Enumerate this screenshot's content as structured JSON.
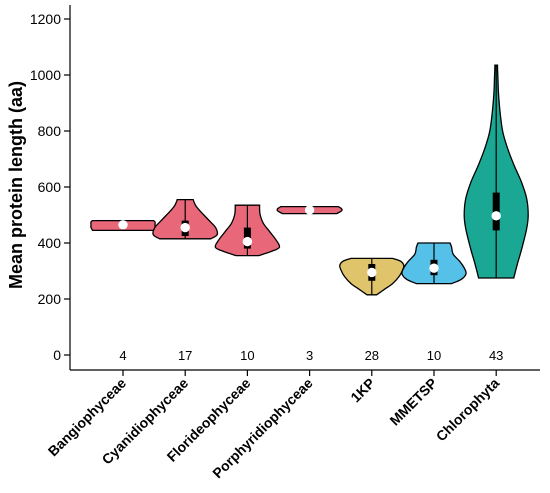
{
  "chart_data": {
    "type": "violin",
    "ylabel": "Mean protein length (aa)",
    "ylim": [
      0,
      1250
    ],
    "yticks": [
      0,
      200,
      400,
      600,
      800,
      1000,
      1200
    ],
    "ytick_labels": [
      "0",
      "200",
      "400",
      "600",
      "800",
      "1000",
      "1200"
    ],
    "grid": false,
    "categories": [
      "Bangiophyceae",
      "Cyanidiophyceae",
      "Florideophyceae",
      "Porphyridiophyceae",
      "1KP",
      "MMETSP",
      "Chlorophyta"
    ],
    "counts": [
      "4",
      "17",
      "10",
      "3",
      "28",
      "10",
      "43"
    ],
    "colors": [
      "#e8687a",
      "#e8687a",
      "#e8687a",
      "#e8687a",
      "#e0c46c",
      "#55c1e8",
      "#1aa894"
    ],
    "series": [
      {
        "median": 465,
        "q1": 458,
        "q3": 472,
        "min": 445,
        "max": 480,
        "profile": [
          [
            445,
            0.95
          ],
          [
            455,
            1.0
          ],
          [
            465,
            1.0
          ],
          [
            475,
            1.0
          ],
          [
            480,
            0.95
          ]
        ]
      },
      {
        "median": 455,
        "q1": 425,
        "q3": 480,
        "min": 415,
        "max": 555,
        "profile": [
          [
            415,
            0.8
          ],
          [
            430,
            1.0
          ],
          [
            455,
            0.95
          ],
          [
            480,
            0.75
          ],
          [
            510,
            0.5
          ],
          [
            530,
            0.35
          ],
          [
            545,
            0.28
          ],
          [
            555,
            0.25
          ]
        ]
      },
      {
        "median": 405,
        "q1": 380,
        "q3": 455,
        "min": 355,
        "max": 535,
        "profile": [
          [
            355,
            0.35
          ],
          [
            370,
            0.75
          ],
          [
            385,
            1.0
          ],
          [
            410,
            0.9
          ],
          [
            440,
            0.7
          ],
          [
            470,
            0.5
          ],
          [
            500,
            0.4
          ],
          [
            520,
            0.38
          ],
          [
            535,
            0.38
          ]
        ]
      },
      {
        "median": 518,
        "q1": 512,
        "q3": 522,
        "min": 505,
        "max": 530,
        "profile": [
          [
            505,
            0.85
          ],
          [
            515,
            1.0
          ],
          [
            522,
            1.0
          ],
          [
            530,
            0.9
          ]
        ]
      },
      {
        "median": 295,
        "q1": 265,
        "q3": 325,
        "min": 215,
        "max": 345,
        "profile": [
          [
            215,
            0.15
          ],
          [
            235,
            0.4
          ],
          [
            255,
            0.65
          ],
          [
            280,
            0.85
          ],
          [
            300,
            0.95
          ],
          [
            320,
            1.0
          ],
          [
            335,
            0.9
          ],
          [
            345,
            0.65
          ]
        ]
      },
      {
        "median": 310,
        "q1": 285,
        "q3": 340,
        "min": 255,
        "max": 400,
        "profile": [
          [
            255,
            0.55
          ],
          [
            270,
            0.85
          ],
          [
            290,
            1.0
          ],
          [
            310,
            0.95
          ],
          [
            335,
            0.8
          ],
          [
            360,
            0.6
          ],
          [
            385,
            0.55
          ],
          [
            400,
            0.5
          ]
        ]
      },
      {
        "median": 497,
        "q1": 445,
        "q3": 580,
        "min": 275,
        "max": 1035,
        "profile": [
          [
            275,
            0.55
          ],
          [
            320,
            0.65
          ],
          [
            380,
            0.8
          ],
          [
            450,
            0.95
          ],
          [
            500,
            1.0
          ],
          [
            560,
            0.95
          ],
          [
            620,
            0.78
          ],
          [
            680,
            0.55
          ],
          [
            740,
            0.35
          ],
          [
            800,
            0.2
          ],
          [
            870,
            0.12
          ],
          [
            940,
            0.07
          ],
          [
            1000,
            0.05
          ],
          [
            1035,
            0.04
          ]
        ]
      }
    ]
  }
}
